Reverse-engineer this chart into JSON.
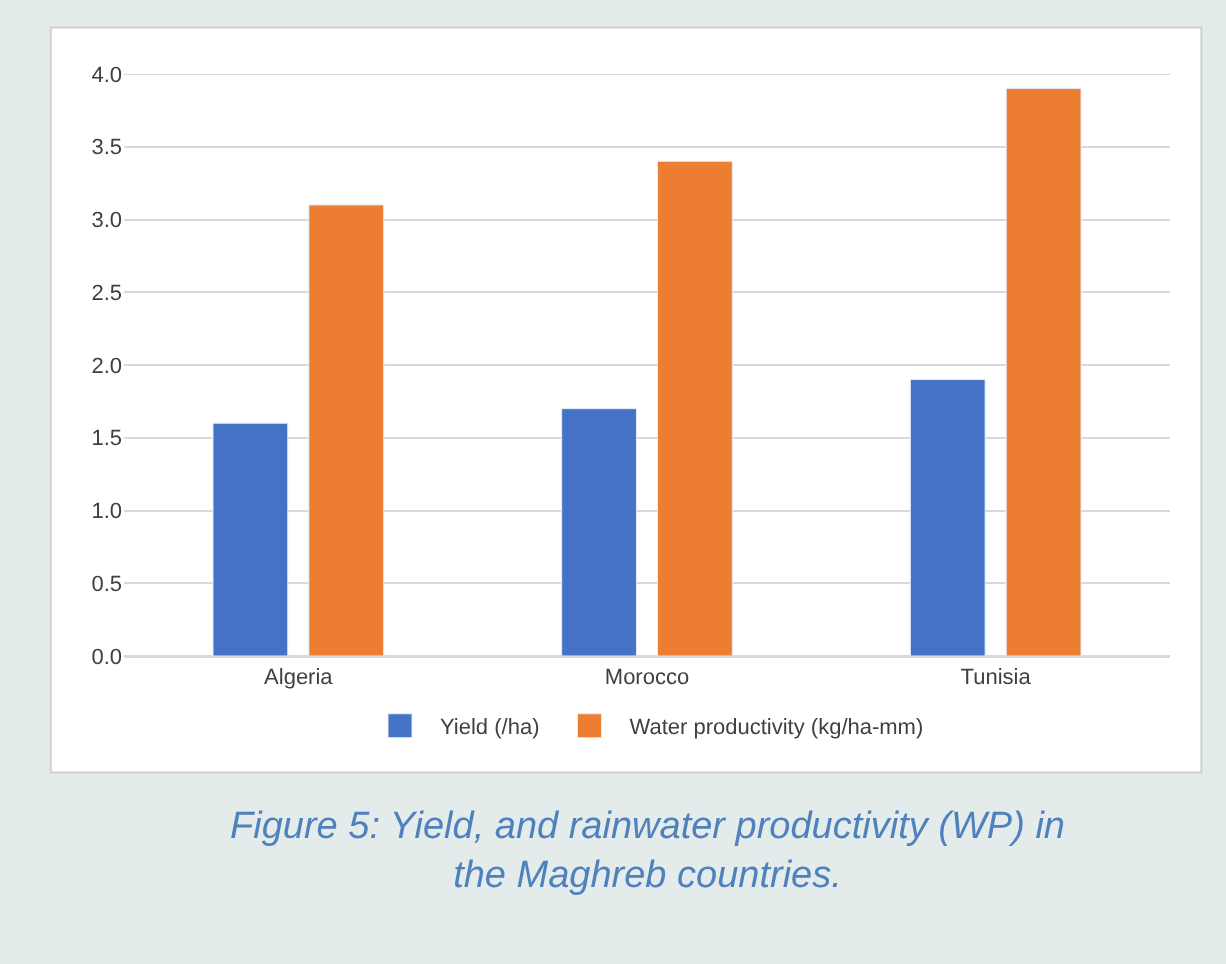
{
  "chart_data": {
    "type": "bar",
    "categories": [
      "Algeria",
      "Morocco",
      "Tunisia"
    ],
    "series": [
      {
        "name": "Yield (/ha)",
        "color": "#4472c4",
        "values": [
          1.6,
          1.7,
          1.9
        ]
      },
      {
        "name": "Water productivity (kg/ha-mm)",
        "color": "#ed7d31",
        "values": [
          3.1,
          3.4,
          3.9
        ]
      }
    ],
    "ylim": [
      0,
      4
    ],
    "yticks": [
      {
        "value": 0,
        "label": "0.0"
      },
      {
        "value": 0.5,
        "label": "0.5"
      },
      {
        "value": 1,
        "label": "1.0"
      },
      {
        "value": 1.5,
        "label": "1.5"
      },
      {
        "value": 2,
        "label": "2.0"
      },
      {
        "value": 2.5,
        "label": "2.5"
      },
      {
        "value": 3,
        "label": "3.0"
      },
      {
        "value": 3.5,
        "label": "3.5"
      },
      {
        "value": 4,
        "label": "4.0"
      }
    ],
    "grid": "y",
    "legend": "bottom",
    "annotations": [
      "Figure 5: Yield, and rainwater productivity (WP) in the Maghreb countries."
    ]
  }
}
